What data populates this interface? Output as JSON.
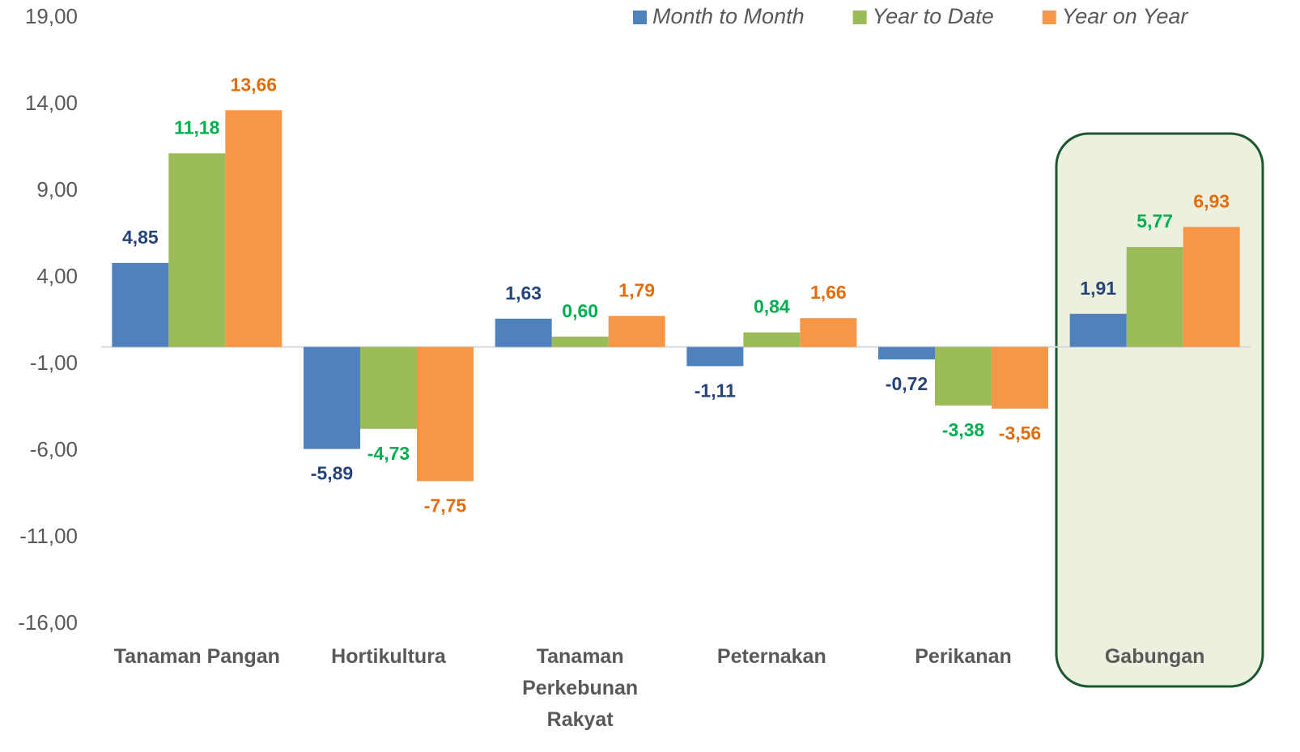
{
  "chart_data": {
    "type": "bar",
    "categories": [
      "Tanaman Pangan",
      "Hortikultura",
      "Tanaman Perkebunan Rakyat",
      "Peternakan",
      "Perikanan",
      "Gabungan"
    ],
    "series": [
      {
        "name": "Month to Month",
        "color": "#4f81bd",
        "label_color": "#264478",
        "values": [
          4.85,
          -5.89,
          1.63,
          -1.11,
          -0.72,
          1.91
        ],
        "value_labels": [
          "4,85",
          "-5,89",
          "1,63",
          "-1,11",
          "-0,72",
          "1,91"
        ]
      },
      {
        "name": "Year to Date",
        "color": "#9bbb59",
        "label_color": "#00b050",
        "values": [
          11.18,
          -4.73,
          0.6,
          0.84,
          -3.38,
          5.77
        ],
        "value_labels": [
          "11,18",
          "-4,73",
          "0,60",
          "0,84",
          "-3,38",
          "5,77"
        ]
      },
      {
        "name": "Year on Year",
        "color": "#f79646",
        "label_color": "#e46c0a",
        "values": [
          13.66,
          -7.75,
          1.79,
          1.66,
          -3.56,
          6.93
        ],
        "value_labels": [
          "13,66",
          "-7,75",
          "1,79",
          "1,66",
          "-3,56",
          "6,93"
        ]
      }
    ],
    "ylim": [
      -16,
      19
    ],
    "yticks": [
      {
        "value": -16,
        "label": "-16,00"
      },
      {
        "value": -11,
        "label": "-11,00"
      },
      {
        "value": -6,
        "label": "-6,00"
      },
      {
        "value": -1,
        "label": "-1,00"
      },
      {
        "value": 4,
        "label": "4,00"
      },
      {
        "value": 9,
        "label": "9,00"
      },
      {
        "value": 14,
        "label": "14,00"
      },
      {
        "value": 19,
        "label": "19,00"
      }
    ],
    "grid": false,
    "legend": "top-right"
  }
}
